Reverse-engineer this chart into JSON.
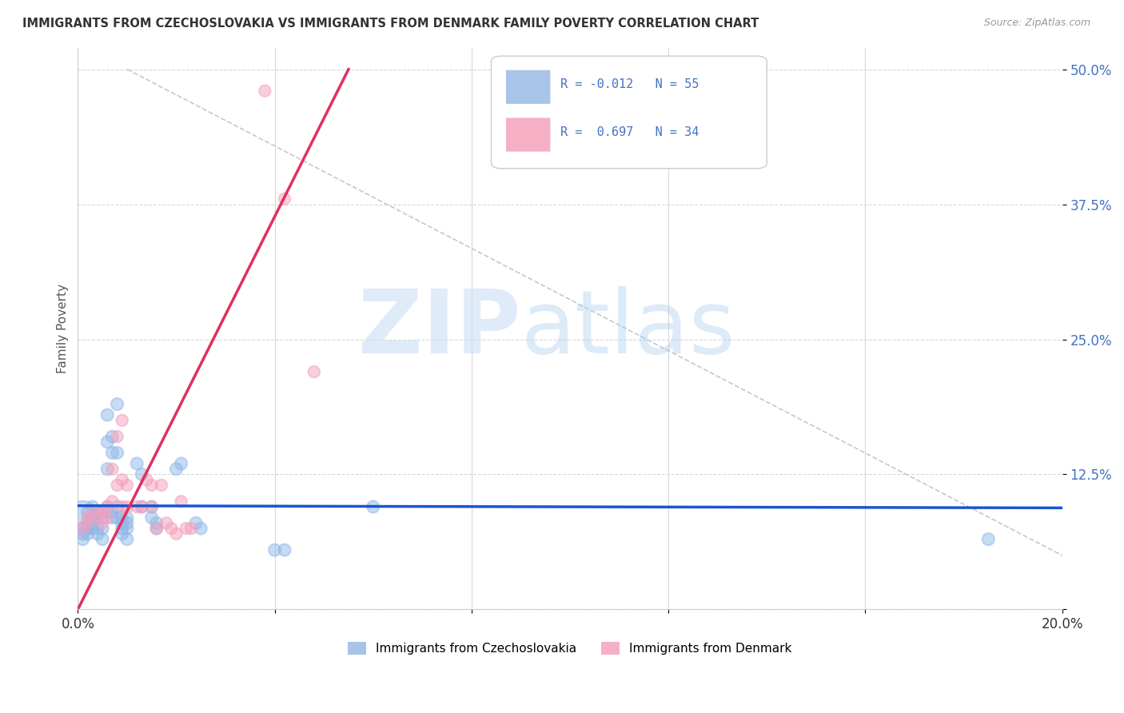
{
  "title": "IMMIGRANTS FROM CZECHOSLOVAKIA VS IMMIGRANTS FROM DENMARK FAMILY POVERTY CORRELATION CHART",
  "source": "Source: ZipAtlas.com",
  "ylabel": "Family Poverty",
  "xlim": [
    0,
    0.2
  ],
  "ylim": [
    0.0,
    0.52
  ],
  "y_ticks": [
    0.0,
    0.125,
    0.25,
    0.375,
    0.5
  ],
  "y_tick_labels": [
    "",
    "12.5%",
    "25.0%",
    "37.5%",
    "50.0%"
  ],
  "x_ticks": [
    0.0,
    0.04,
    0.08,
    0.12,
    0.16,
    0.2
  ],
  "x_tick_labels": [
    "0.0%",
    "",
    "",
    "",
    "",
    "20.0%"
  ],
  "legend_r1": "R = -0.012",
  "legend_n1": "N = 55",
  "legend_r2": "R =  0.697",
  "legend_n2": "N = 34",
  "legend_color1": "#a8c4e8",
  "legend_color2": "#f5b0c5",
  "watermark_zip": "ZIP",
  "watermark_atlas": "atlas",
  "czech_color": "#90b8e8",
  "denmark_color": "#f5a0bc",
  "czech_line_color": "#1a56cc",
  "denmark_line_color": "#e03060",
  "diag_line_color": "#c8c8c8",
  "background_color": "#ffffff",
  "grid_color": "#d8d8d8",
  "tick_label_color": "#4472c4",
  "czech_points": [
    [
      0.001,
      0.085
    ],
    [
      0.001,
      0.075
    ],
    [
      0.001,
      0.07
    ],
    [
      0.001,
      0.065
    ],
    [
      0.002,
      0.09
    ],
    [
      0.002,
      0.08
    ],
    [
      0.002,
      0.075
    ],
    [
      0.002,
      0.07
    ],
    [
      0.003,
      0.095
    ],
    [
      0.003,
      0.085
    ],
    [
      0.003,
      0.08
    ],
    [
      0.003,
      0.075
    ],
    [
      0.004,
      0.09
    ],
    [
      0.004,
      0.085
    ],
    [
      0.004,
      0.075
    ],
    [
      0.004,
      0.07
    ],
    [
      0.005,
      0.09
    ],
    [
      0.005,
      0.085
    ],
    [
      0.005,
      0.075
    ],
    [
      0.005,
      0.065
    ],
    [
      0.006,
      0.18
    ],
    [
      0.006,
      0.155
    ],
    [
      0.006,
      0.13
    ],
    [
      0.006,
      0.095
    ],
    [
      0.007,
      0.16
    ],
    [
      0.007,
      0.145
    ],
    [
      0.007,
      0.09
    ],
    [
      0.007,
      0.085
    ],
    [
      0.008,
      0.19
    ],
    [
      0.008,
      0.145
    ],
    [
      0.008,
      0.095
    ],
    [
      0.008,
      0.085
    ],
    [
      0.009,
      0.085
    ],
    [
      0.009,
      0.08
    ],
    [
      0.009,
      0.075
    ],
    [
      0.009,
      0.07
    ],
    [
      0.01,
      0.085
    ],
    [
      0.01,
      0.08
    ],
    [
      0.01,
      0.075
    ],
    [
      0.01,
      0.065
    ],
    [
      0.012,
      0.135
    ],
    [
      0.013,
      0.125
    ],
    [
      0.013,
      0.095
    ],
    [
      0.015,
      0.095
    ],
    [
      0.015,
      0.085
    ],
    [
      0.016,
      0.08
    ],
    [
      0.016,
      0.075
    ],
    [
      0.02,
      0.13
    ],
    [
      0.021,
      0.135
    ],
    [
      0.024,
      0.08
    ],
    [
      0.025,
      0.075
    ],
    [
      0.04,
      0.055
    ],
    [
      0.042,
      0.055
    ],
    [
      0.06,
      0.095
    ],
    [
      0.185,
      0.065
    ]
  ],
  "czech_sizes_large": [
    [
      0,
      900
    ]
  ],
  "denmark_points": [
    [
      0.001,
      0.075
    ],
    [
      0.002,
      0.085
    ],
    [
      0.002,
      0.08
    ],
    [
      0.003,
      0.09
    ],
    [
      0.004,
      0.085
    ],
    [
      0.005,
      0.09
    ],
    [
      0.005,
      0.08
    ],
    [
      0.006,
      0.095
    ],
    [
      0.006,
      0.085
    ],
    [
      0.007,
      0.13
    ],
    [
      0.007,
      0.1
    ],
    [
      0.008,
      0.16
    ],
    [
      0.008,
      0.115
    ],
    [
      0.009,
      0.175
    ],
    [
      0.009,
      0.12
    ],
    [
      0.009,
      0.095
    ],
    [
      0.01,
      0.115
    ],
    [
      0.01,
      0.095
    ],
    [
      0.012,
      0.095
    ],
    [
      0.013,
      0.095
    ],
    [
      0.014,
      0.12
    ],
    [
      0.015,
      0.115
    ],
    [
      0.015,
      0.095
    ],
    [
      0.016,
      0.075
    ],
    [
      0.017,
      0.115
    ],
    [
      0.018,
      0.08
    ],
    [
      0.019,
      0.075
    ],
    [
      0.02,
      0.07
    ],
    [
      0.021,
      0.1
    ],
    [
      0.022,
      0.075
    ],
    [
      0.023,
      0.075
    ],
    [
      0.038,
      0.48
    ],
    [
      0.042,
      0.38
    ],
    [
      0.048,
      0.22
    ]
  ],
  "czech_line": {
    "x0": 0.0,
    "y0": 0.096,
    "x1": 0.2,
    "y1": 0.094
  },
  "denmark_line": {
    "x0": 0.0,
    "y0": 0.0,
    "x1": 0.055,
    "y1": 0.5
  },
  "diag_line": {
    "x0": 0.01,
    "y0": 0.5,
    "x1": 0.2,
    "y1": 0.05
  }
}
